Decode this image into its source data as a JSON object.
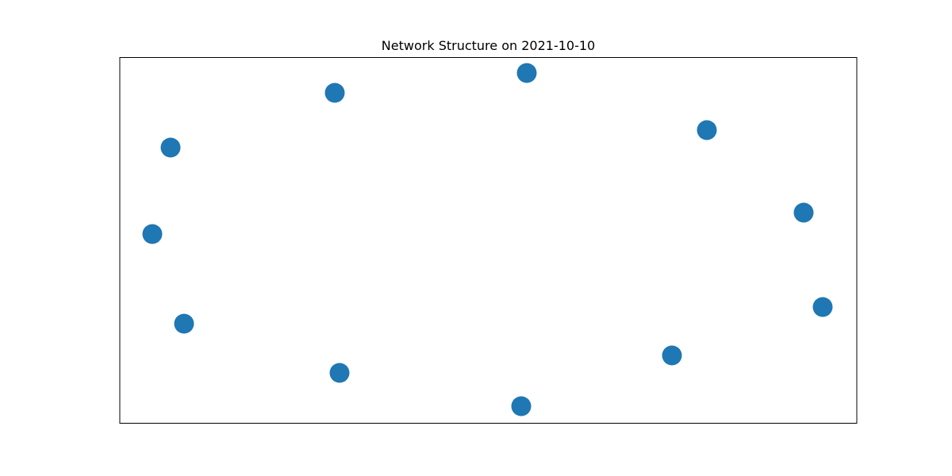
{
  "title": "Network Structure on 2021-10-10",
  "colors": {
    "node": "#1f77b4",
    "frame": "#000000",
    "background": "#ffffff"
  },
  "nodes": [
    {
      "id": "n1"
    },
    {
      "id": "n2"
    },
    {
      "id": "n3"
    },
    {
      "id": "n4"
    },
    {
      "id": "n5"
    },
    {
      "id": "n6"
    },
    {
      "id": "n7"
    },
    {
      "id": "n8"
    },
    {
      "id": "n9"
    },
    {
      "id": "n10"
    }
  ],
  "edges": []
}
